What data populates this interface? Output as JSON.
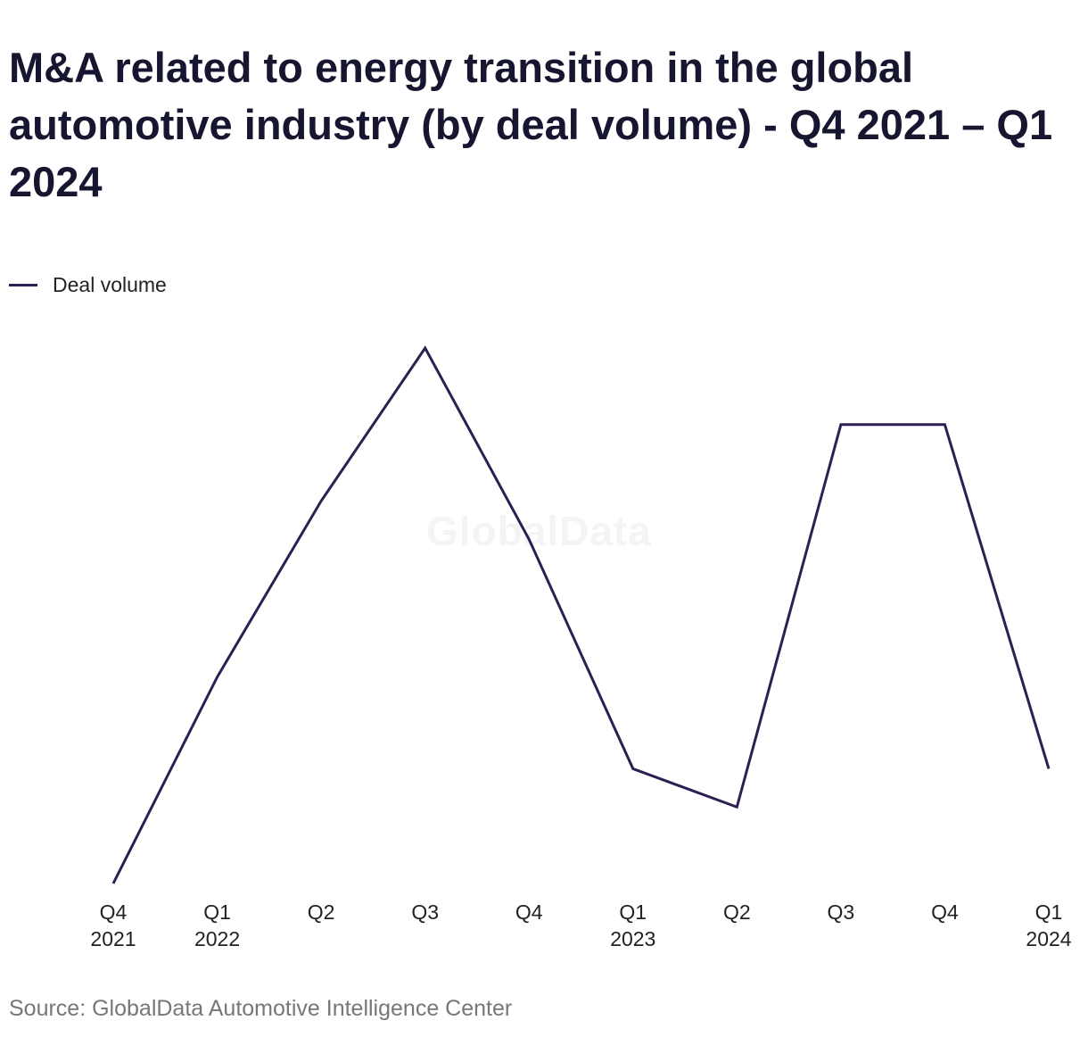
{
  "title": "M&A related to energy transition in the global automotive industry (by deal volume) - Q4 2021 – Q1 2024",
  "legend": {
    "label": "Deal volume"
  },
  "watermark": "GlobalData",
  "source": "Source: GlobalData Automotive Intelligence Center",
  "colors": {
    "series": "#2e1f52",
    "text": "#161630"
  },
  "chart_data": {
    "type": "line",
    "categories": [
      "Q4 2021",
      "Q1 2022",
      "Q2",
      "Q3",
      "Q4",
      "Q1 2023",
      "Q2",
      "Q3",
      "Q4",
      "Q1 2024"
    ],
    "tick_lines": [
      [
        "Q4",
        "2021"
      ],
      [
        "Q1",
        "2022"
      ],
      [
        "Q2"
      ],
      [
        "Q3"
      ],
      [
        "Q4"
      ],
      [
        "Q1",
        "2023"
      ],
      [
        "Q2"
      ],
      [
        "Q3"
      ],
      [
        "Q4"
      ],
      [
        "Q1",
        "2024"
      ]
    ],
    "series": [
      {
        "name": "Deal volume",
        "values": [
          0,
          27,
          50,
          70,
          45,
          15,
          10,
          60,
          60,
          15
        ]
      }
    ],
    "ylim": [
      0,
      70
    ],
    "grid": false,
    "legend_position": "top-left"
  }
}
